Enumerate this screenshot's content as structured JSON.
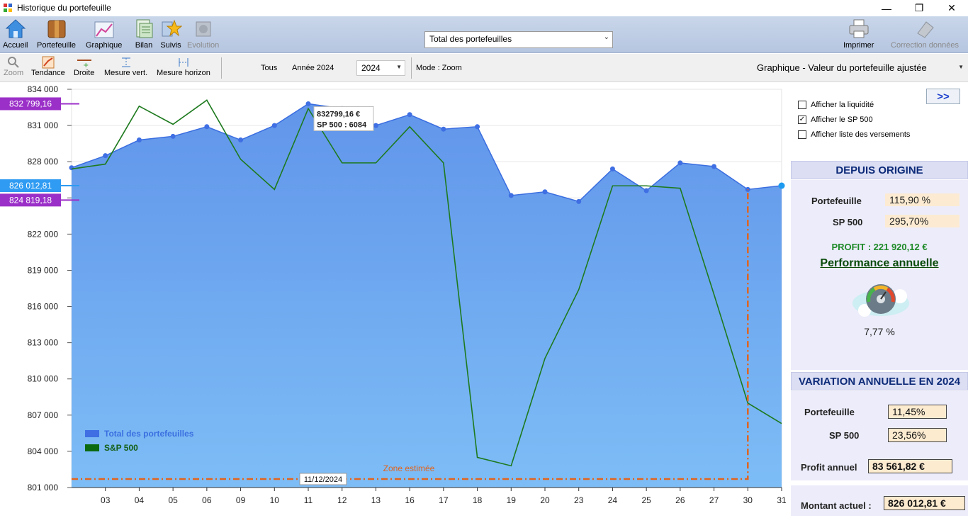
{
  "window": {
    "title": "Historique du portefeuille"
  },
  "toolbar": {
    "accueil": "Accueil",
    "portefeuille": "Portefeuille",
    "graphique": "Graphique",
    "bilan": "Bilan",
    "suivis": "Suivis",
    "evolution": "Evolution",
    "portfolio_select": "Total des portefeuilles",
    "imprimer": "Imprimer",
    "correction": "Correction données"
  },
  "toolbar2": {
    "zoom": "Zoom",
    "tendance": "Tendance",
    "droite": "Droite",
    "mesure_vert": "Mesure vert.",
    "mesure_horizon": "Mesure horizon",
    "tous": "Tous",
    "annee": "Année 2024",
    "year_value": "2024",
    "mode": "Mode : Zoom",
    "graph_select": "Graphique - Valeur du portefeuille ajustée"
  },
  "chart_data": {
    "type": "area",
    "x": [
      "",
      "03",
      "04",
      "05",
      "06",
      "09",
      "10",
      "11",
      "12",
      "13",
      "16",
      "17",
      "18",
      "19",
      "20",
      "23",
      "24",
      "25",
      "26",
      "27",
      "30",
      "31"
    ],
    "xticks": [
      "03",
      "04",
      "05",
      "06",
      "09",
      "10",
      "11",
      "12",
      "13",
      "16",
      "17",
      "18",
      "19",
      "20",
      "23",
      "24",
      "25",
      "26",
      "27",
      "30",
      "31"
    ],
    "ylim": [
      801000,
      834000
    ],
    "yticks": [
      "834 000",
      "831 000",
      "828 000",
      "825 000",
      "822 000",
      "819 000",
      "816 000",
      "813 000",
      "810 000",
      "807 000",
      "804 000",
      "801 000"
    ],
    "series": [
      {
        "name": "Total des portefeuilles",
        "color": "#4a7fe6",
        "values": [
          827500,
          828500,
          829800,
          830100,
          830900,
          829800,
          831000,
          832799,
          832400,
          831000,
          831900,
          830700,
          830900,
          825200,
          825500,
          824700,
          827400,
          825600,
          827900,
          827600,
          825700,
          826013
        ]
      },
      {
        "name": "S&P 500",
        "color": "#1e7a1e",
        "values": [
          827400,
          827800,
          832600,
          831100,
          833100,
          828200,
          825700,
          832400,
          827900,
          827900,
          830900,
          827900,
          803500,
          802800,
          811700,
          817400,
          826000,
          826000,
          825800,
          817000,
          808000,
          806300
        ]
      }
    ],
    "markers": [
      {
        "label": "832 799,16",
        "value": 832799.16,
        "color": "#9b30c8"
      },
      {
        "label": "826 012,81",
        "value": 826012.81,
        "color": "#2f9bf2"
      },
      {
        "label": "824 819,18",
        "value": 824819.18,
        "color": "#9b30c8"
      }
    ],
    "tooltip": {
      "line1": "832799,16 €",
      "line2": "SP 500 : 6084"
    },
    "zone_label": "Zone estimée",
    "zone_date": "11/12/2024",
    "legend_position": "bottom-left"
  },
  "panel": {
    "show_liquidity": "Afficher la liquidité",
    "show_sp500": "Afficher le SP 500",
    "show_versements": "Afficher liste des versements",
    "nav": ">>",
    "origin_title": "DEPUIS ORIGINE",
    "portefeuille_label": "Portefeuille",
    "portefeuille_origin": "115,90 %",
    "sp500_label": "SP 500",
    "sp500_origin": "295,70%",
    "profit": "PROFIT : 221 920,12 €",
    "perf_title": "Performance annuelle",
    "perf_value": "7,77 %",
    "annual_title": "VARIATION ANNUELLE EN 2024",
    "portefeuille_annual": "11,45%",
    "sp500_annual": "23,56%",
    "profit_annuel_label": "Profit annuel",
    "profit_annuel": "83 561,82 €",
    "montant_label": "Montant actuel :",
    "montant": "826 012,81 €"
  }
}
